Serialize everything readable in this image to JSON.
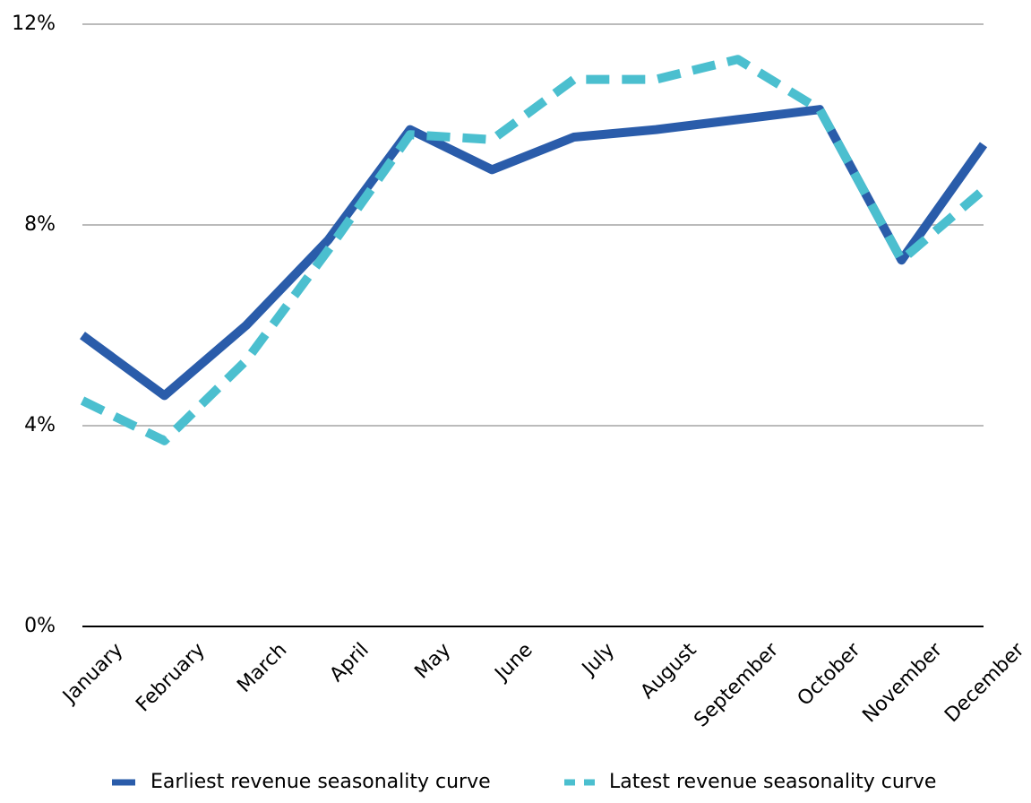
{
  "chart_data": {
    "type": "line",
    "categories": [
      "January",
      "February",
      "March",
      "April",
      "May",
      "June",
      "July",
      "August",
      "September",
      "October",
      "November",
      "December"
    ],
    "series": [
      {
        "name": "Earliest revenue seasonality curve",
        "color": "#2a5caa",
        "dashed": false,
        "values": [
          5.8,
          4.6,
          6.0,
          7.7,
          9.9,
          9.1,
          9.75,
          9.9,
          10.1,
          10.3,
          7.3,
          9.6
        ]
      },
      {
        "name": "Latest revenue seasonality curve",
        "color": "#4bbfcf",
        "dashed": true,
        "values": [
          4.5,
          3.7,
          5.3,
          7.5,
          9.8,
          9.7,
          10.9,
          10.9,
          11.3,
          10.3,
          7.3,
          8.7
        ]
      }
    ],
    "ylim": [
      0,
      12
    ],
    "yticks": [
      {
        "value": 0,
        "label": "0%"
      },
      {
        "value": 4,
        "label": "4%"
      },
      {
        "value": 8,
        "label": "8%"
      },
      {
        "value": 12,
        "label": "12%"
      }
    ],
    "grid": true,
    "legend": "bottom"
  }
}
